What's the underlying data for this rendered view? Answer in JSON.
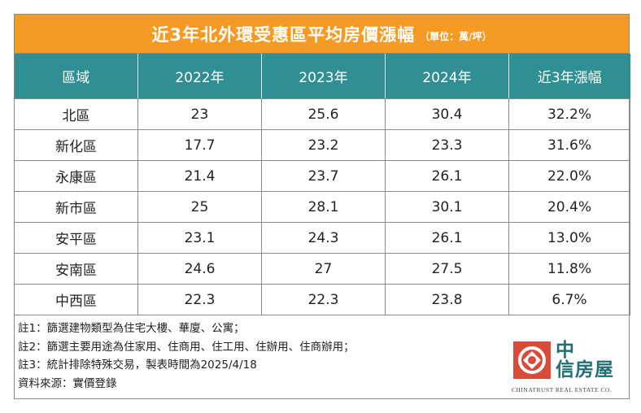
{
  "title": {
    "main": "近3年北外環受惠區平均房價漲幅",
    "unit": "（單位：萬/坪）"
  },
  "colors": {
    "title_bg": "#f59a23",
    "header_bg": "#2f8f93",
    "logo_red": "#d94a38",
    "logo_teal": "#1f6f73"
  },
  "chart_data": {
    "type": "table",
    "columns": [
      "區域",
      "2022年",
      "2023年",
      "2024年",
      "近3年漲幅"
    ],
    "rows": [
      [
        "北區",
        "23",
        "25.6",
        "30.4",
        "32.2%"
      ],
      [
        "新化區",
        "17.7",
        "23.2",
        "23.3",
        "31.6%"
      ],
      [
        "永康區",
        "21.4",
        "23.7",
        "26.1",
        "22.0%"
      ],
      [
        "新市區",
        "25",
        "28.1",
        "30.1",
        "20.4%"
      ],
      [
        "安平區",
        "23.1",
        "24.3",
        "26.1",
        "13.0%"
      ],
      [
        "安南區",
        "24.6",
        "27",
        "27.5",
        "11.8%"
      ],
      [
        "中西區",
        "22.3",
        "22.3",
        "23.8",
        "6.7%"
      ]
    ]
  },
  "notes": [
    "註1：篩選建物類型為住宅大樓、華廈、公寓；",
    "註2：篩選主要用途為住家用、住商用、住工用、住辦用、住商辦用；",
    "註3：統計排除特殊交易，製表時間為2025/4/18",
    "資料來源：實價登錄"
  ],
  "logo": {
    "line1": "中",
    "line2": "信房屋",
    "en": "CHINATRUST REAL ESTATE CO.",
    "icon": "chinatrust-logo-icon"
  }
}
